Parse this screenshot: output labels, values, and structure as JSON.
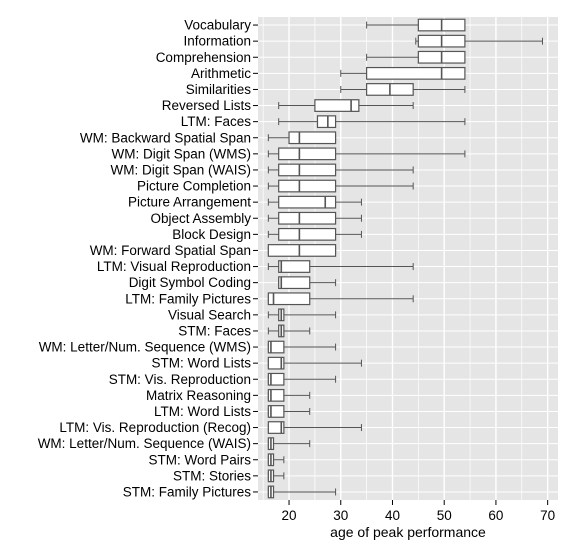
{
  "chart_data": {
    "type": "boxplot",
    "title": "",
    "xlabel": "age of peak performance",
    "ylabel": "",
    "xlim": [
      14,
      72
    ],
    "xticks": [
      20,
      30,
      40,
      50,
      60,
      70
    ],
    "grid": true,
    "orientation": "horizontal",
    "series": [
      {
        "name": "Vocabulary",
        "whisker_low": 35,
        "q1": 45,
        "median": 49.5,
        "q3": 54,
        "whisker_high": 54
      },
      {
        "name": "Information",
        "whisker_low": 44.5,
        "q1": 45,
        "median": 49.5,
        "q3": 54,
        "whisker_high": 69
      },
      {
        "name": "Comprehension",
        "whisker_low": 35,
        "q1": 45,
        "median": 49.5,
        "q3": 54,
        "whisker_high": 54
      },
      {
        "name": "Arithmetic",
        "whisker_low": 30,
        "q1": 35,
        "median": 49.5,
        "q3": 54,
        "whisker_high": 54
      },
      {
        "name": "Similarities",
        "whisker_low": 30,
        "q1": 35,
        "median": 39.5,
        "q3": 44,
        "whisker_high": 54
      },
      {
        "name": "Reversed Lists",
        "whisker_low": 18,
        "q1": 25,
        "median": 32,
        "q3": 33.5,
        "whisker_high": 44
      },
      {
        "name": "LTM: Faces",
        "whisker_low": 18,
        "q1": 25.5,
        "median": 27.5,
        "q3": 29,
        "whisker_high": 54
      },
      {
        "name": "WM: Backward Spatial Span",
        "whisker_low": 16,
        "q1": 20,
        "median": 22,
        "q3": 29,
        "whisker_high": 29
      },
      {
        "name": "WM: Digit Span (WMS)",
        "whisker_low": 16,
        "q1": 18,
        "median": 22,
        "q3": 29,
        "whisker_high": 54
      },
      {
        "name": "WM: Digit Span (WAIS)",
        "whisker_low": 16,
        "q1": 18,
        "median": 22,
        "q3": 29,
        "whisker_high": 44
      },
      {
        "name": "Picture Completion",
        "whisker_low": 16,
        "q1": 18,
        "median": 22,
        "q3": 29,
        "whisker_high": 44
      },
      {
        "name": "Picture Arrangement",
        "whisker_low": 16,
        "q1": 18,
        "median": 27,
        "q3": 29,
        "whisker_high": 34
      },
      {
        "name": "Object Assembly",
        "whisker_low": 16,
        "q1": 18,
        "median": 22,
        "q3": 29,
        "whisker_high": 34
      },
      {
        "name": "Block Design",
        "whisker_low": 16,
        "q1": 18,
        "median": 22,
        "q3": 29,
        "whisker_high": 34
      },
      {
        "name": "WM: Forward Spatial Span",
        "whisker_low": 16,
        "q1": 16,
        "median": 22,
        "q3": 29,
        "whisker_high": 29
      },
      {
        "name": "LTM: Visual Reproduction",
        "whisker_low": 16,
        "q1": 18,
        "median": 18.5,
        "q3": 24,
        "whisker_high": 44
      },
      {
        "name": "Digit Symbol Coding",
        "whisker_low": 18,
        "q1": 18,
        "median": 18.5,
        "q3": 24,
        "whisker_high": 29
      },
      {
        "name": "LTM: Family Pictures",
        "whisker_low": 16,
        "q1": 16,
        "median": 17,
        "q3": 24,
        "whisker_high": 44
      },
      {
        "name": "Visual Search",
        "whisker_low": 16,
        "q1": 18,
        "median": 18.5,
        "q3": 19,
        "whisker_high": 29
      },
      {
        "name": "STM: Faces",
        "whisker_low": 16,
        "q1": 18,
        "median": 18.5,
        "q3": 19,
        "whisker_high": 24
      },
      {
        "name": "WM: Letter/Num. Sequence (WMS)",
        "whisker_low": 16,
        "q1": 16,
        "median": 16.5,
        "q3": 19,
        "whisker_high": 29
      },
      {
        "name": "STM: Word Lists",
        "whisker_low": 16,
        "q1": 16,
        "median": 18.5,
        "q3": 19,
        "whisker_high": 34
      },
      {
        "name": "STM: Vis. Reproduction",
        "whisker_low": 16,
        "q1": 16,
        "median": 16.5,
        "q3": 19,
        "whisker_high": 29
      },
      {
        "name": "Matrix Reasoning",
        "whisker_low": 16,
        "q1": 16,
        "median": 16.5,
        "q3": 19,
        "whisker_high": 24
      },
      {
        "name": "LTM: Word Lists",
        "whisker_low": 16,
        "q1": 16,
        "median": 16.5,
        "q3": 19,
        "whisker_high": 24
      },
      {
        "name": "LTM: Vis. Reproduction (Recog)",
        "whisker_low": 16,
        "q1": 16,
        "median": 18.5,
        "q3": 19,
        "whisker_high": 34
      },
      {
        "name": "WM: Letter/Num. Sequence (WAIS)",
        "whisker_low": 16,
        "q1": 16,
        "median": 16.5,
        "q3": 17,
        "whisker_high": 24
      },
      {
        "name": "STM: Word Pairs",
        "whisker_low": 16,
        "q1": 16,
        "median": 16.5,
        "q3": 17,
        "whisker_high": 19
      },
      {
        "name": "STM: Stories",
        "whisker_low": 16,
        "q1": 16,
        "median": 16.5,
        "q3": 17,
        "whisker_high": 19
      },
      {
        "name": "STM: Family Pictures",
        "whisker_low": 16,
        "q1": 16,
        "median": 16.5,
        "q3": 17,
        "whisker_high": 29
      }
    ]
  },
  "colors": {
    "panel_background": "#e5e5e5",
    "grid": "#ffffff",
    "box_fill": "#ffffff",
    "box_stroke": "#555555"
  }
}
